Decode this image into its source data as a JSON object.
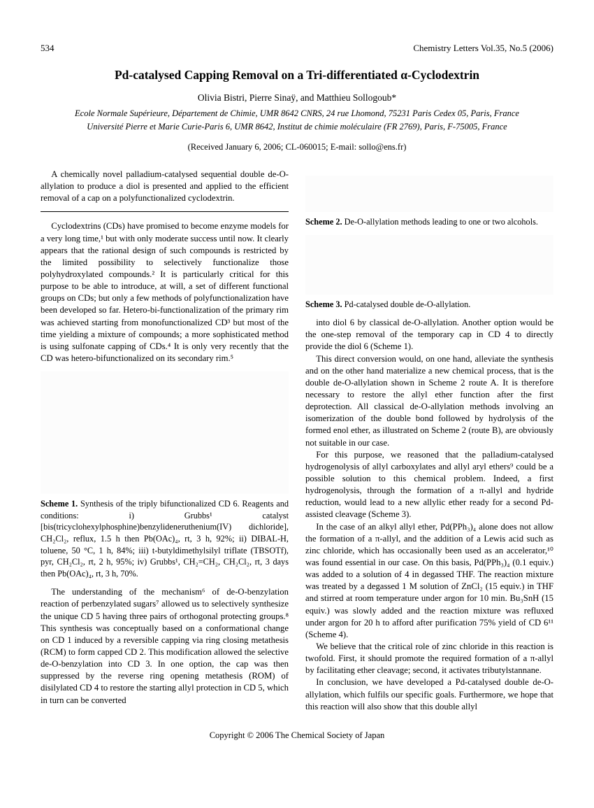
{
  "header": {
    "page_number": "534",
    "journal_ref": "Chemistry Letters Vol.35, No.5 (2006)"
  },
  "title": "Pd-catalysed Capping Removal on a Tri-differentiated α-Cyclodextrin",
  "authors": "Olivia Bistri, Pierre Sinaÿ, and Matthieu Sollogoub*",
  "affiliations": [
    "Ecole Normale Supérieure, Département de Chimie, UMR 8642 CNRS, 24 rue Lhomond, 75231 Paris Cedex 05, Paris, France",
    "Université Pierre et Marie Curie-Paris 6, UMR 8642, Institut de chimie moléculaire (FR 2769), Paris, F-75005, France"
  ],
  "received": "(Received January 6, 2006; CL-060015; E-mail: sollo@ens.fr)",
  "abstract": "A chemically novel palladium-catalysed sequential double de-O-allylation to produce a diol is presented and applied to the efficient removal of a cap on a polyfunctionalized cyclodextrin.",
  "paragraphs": {
    "p1": "Cyclodextrins (CDs) have promised to become enzyme models for a very long time,¹ but with only moderate success until now. It clearly appears that the rational design of such compounds is restricted by the limited possibility to selectively functionalize those polyhydroxylated compounds.² It is particularly critical for this purpose to be able to introduce, at will, a set of different functional groups on CDs; but only a few methods of polyfunctionalization have been developed so far. Hetero-bi-functionalization of the primary rim was achieved starting from monofunctionalized CD³ but most of the time yielding a mixture of compounds; a more sophisticated method is using sulfonate capping of CDs.⁴ It is only very recently that the CD was hetero-bifunctionalized on its secondary rim.⁵",
    "p2": "The understanding of the mechanism⁶ of de-O-benzylation reaction of perbenzylated sugars⁷ allowed us to selectively synthesize the unique CD 5 having three pairs of orthogonal protecting groups.⁸ This synthesis was conceptually based on a conformational change on CD 1 induced by a reversible capping via ring closing metathesis (RCM) to form capped CD 2. This modification allowed the selective de-O-benzylation into CD 3. In one option, the cap was then suppressed by the reverse ring opening metathesis (ROM) of disilylated CD 4 to restore the starting allyl protection in CD 5, which in turn can be converted",
    "p3": "into diol 6 by classical de-O-allylation. Another option would be the one-step removal of the temporary cap in CD 4 to directly provide the diol 6 (Scheme 1).",
    "p4": "This direct conversion would, on one hand, alleviate the synthesis and on the other hand materialize a new chemical process, that is the double de-O-allylation shown in Scheme 2 route A. It is therefore necessary to restore the allyl ether function after the first deprotection. All classical de-O-allylation methods involving an isomerization of the double bond followed by hydrolysis of the formed enol ether, as illustrated on Scheme 2 (route B), are obviously not suitable in our case.",
    "p5": "For this purpose, we reasoned that the palladium-catalysed hydrogenolysis of allyl carboxylates and allyl aryl ethers⁹ could be a possible solution to this chemical problem. Indeed, a first hydrogenolysis, through the formation of a π-allyl and hydride reduction, would lead to a new allylic ether ready for a second Pd-assisted cleavage (Scheme 3).",
    "p6": "In the case of an alkyl allyl ether, Pd(PPh₃)₄ alone does not allow the formation of a π-allyl, and the addition of a Lewis acid such as zinc chloride, which has occasionally been used as an accelerator,¹⁰ was found essential in our case. On this basis, Pd(PPh₃)₄ (0.1 equiv.) was added to a solution of 4 in degassed THF. The reaction mixture was treated by a degassed 1 M solution of ZnCl₂ (15 equiv.) in THF and stirred at room temperature under argon for 10 min. Bu₃SnH (15 equiv.) was slowly added and the reaction mixture was refluxed under argon for 20 h to afford after purification 75% yield of CD 6¹¹ (Scheme 4).",
    "p7": "We believe that the critical role of zinc chloride in this reaction is twofold. First, it should promote the required formation of a π-allyl by facilitating ether cleavage; second, it activates tributylstannane.",
    "p8": "In conclusion, we have developed a Pd-catalysed double de-O-allylation, which fulfils our specific goals. Furthermore, we hope that this reaction will also show that this double allyl"
  },
  "scheme_captions": {
    "s1_label": "Scheme 1.",
    "s1_text": " Synthesis of the triply bifunctionalized CD 6. Reagents and conditions: i) Grubbs¹ catalyst [bis(tricyclohexylphosphine)benzylideneruthenium(IV) dichloride], CH₂Cl₂, reflux, 1.5 h then Pb(OAc)₄, rt, 3 h, 92%; ii) DIBAL-H, toluene, 50 °C, 1 h, 84%; iii) t-butyldimethylsilyl triflate (TBSOTf), pyr, CH₂Cl₂, rt, 2 h, 95%; iv) Grubbs¹, CH₂=CH₂, CH₂Cl₂, rt, 3 days then Pb(OAc)₄, rt, 3 h, 70%.",
    "s2_label": "Scheme 2.",
    "s2_text": " De-O-allylation methods leading to one or two alcohols.",
    "s3_label": "Scheme 3.",
    "s3_text": " Pd-catalysed double de-O-allylation."
  },
  "scheme_placeholders": {
    "s1": "",
    "s2": "",
    "s3": ""
  },
  "copyright": "Copyright © 2006 The Chemical Society of Japan"
}
